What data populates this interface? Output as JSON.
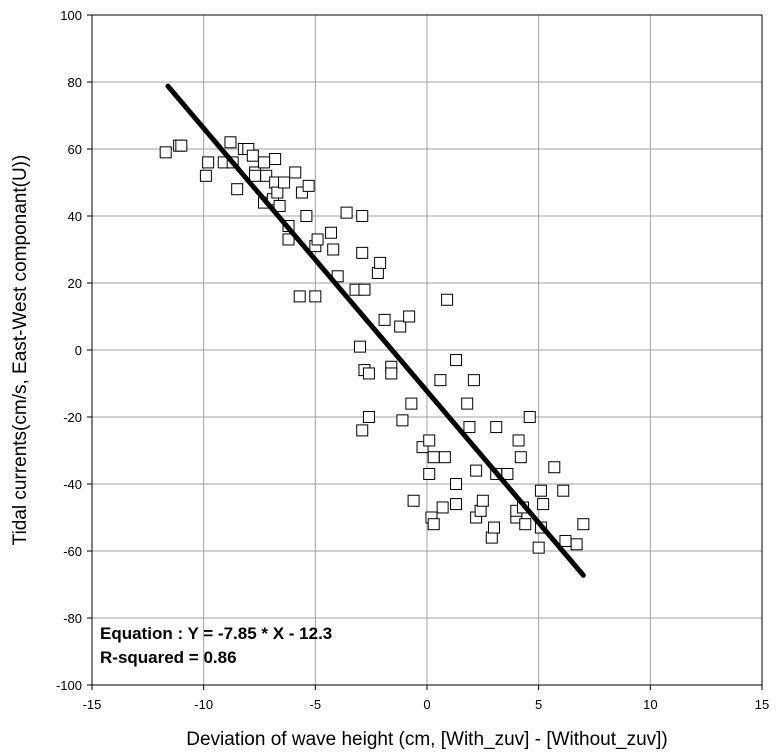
{
  "chart_data": {
    "type": "scatter",
    "xlabel": "Deviation of wave height (cm, [With_zuv] - [Without_zuv])",
    "ylabel": "Tidal currents(cm/s, East-West componant(U))",
    "xlim": [
      -15,
      15
    ],
    "ylim": [
      -100,
      100
    ],
    "xticks": [
      -15,
      -10,
      -5,
      0,
      5,
      10,
      15
    ],
    "yticks": [
      -100,
      -80,
      -60,
      -40,
      -20,
      0,
      20,
      40,
      60,
      80,
      100
    ],
    "xtick_labels": [
      "-15",
      "-10",
      "-5",
      "0",
      "5",
      "10",
      "15"
    ],
    "ytick_labels": [
      "-100",
      "-80",
      "-60",
      "-40",
      "-20",
      "0",
      "20",
      "40",
      "60",
      "80",
      "100"
    ],
    "grid": true,
    "marker": "open-square",
    "fit_line": {
      "slope": -7.85,
      "intercept": -12.3,
      "x_range": [
        -11.6,
        7.0
      ]
    },
    "annotations": [
      "Equation : Y = -7.85 * X - 12.3",
      "R-squared = 0.86"
    ],
    "points": [
      [
        -11.7,
        59
      ],
      [
        -11.1,
        61
      ],
      [
        -11.0,
        61
      ],
      [
        -9.9,
        52
      ],
      [
        -9.8,
        56
      ],
      [
        -9.1,
        56
      ],
      [
        -8.8,
        62
      ],
      [
        -8.7,
        56
      ],
      [
        -8.5,
        48
      ],
      [
        -8.2,
        60
      ],
      [
        -8.0,
        60
      ],
      [
        -7.8,
        58
      ],
      [
        -7.7,
        53
      ],
      [
        -7.7,
        52
      ],
      [
        -7.3,
        44
      ],
      [
        -7.3,
        56
      ],
      [
        -7.2,
        52
      ],
      [
        -6.9,
        45
      ],
      [
        -6.8,
        57
      ],
      [
        -6.8,
        50
      ],
      [
        -6.7,
        47
      ],
      [
        -6.6,
        43
      ],
      [
        -6.4,
        50
      ],
      [
        -6.2,
        37
      ],
      [
        -6.2,
        33
      ],
      [
        -5.9,
        53
      ],
      [
        -5.7,
        16
      ],
      [
        -5.6,
        47
      ],
      [
        -5.4,
        40
      ],
      [
        -5.3,
        49
      ],
      [
        -5.0,
        31
      ],
      [
        -5.0,
        16
      ],
      [
        -4.9,
        33
      ],
      [
        -4.3,
        35
      ],
      [
        -4.2,
        30
      ],
      [
        -4.0,
        22
      ],
      [
        -3.6,
        41
      ],
      [
        -3.2,
        18
      ],
      [
        -3.0,
        1
      ],
      [
        -2.9,
        40
      ],
      [
        -2.9,
        29
      ],
      [
        -2.9,
        -24
      ],
      [
        -2.8,
        18
      ],
      [
        -2.8,
        -6
      ],
      [
        -2.6,
        -7
      ],
      [
        -2.6,
        -20
      ],
      [
        -2.2,
        23
      ],
      [
        -2.1,
        26
      ],
      [
        -1.9,
        9
      ],
      [
        -1.6,
        -5
      ],
      [
        -1.6,
        -7
      ],
      [
        -1.2,
        7
      ],
      [
        -1.1,
        -21
      ],
      [
        -0.8,
        10
      ],
      [
        -0.7,
        -16
      ],
      [
        -0.6,
        -45
      ],
      [
        -0.2,
        -29
      ],
      [
        0.1,
        -27
      ],
      [
        0.1,
        -37
      ],
      [
        0.2,
        -50
      ],
      [
        0.3,
        -52
      ],
      [
        0.3,
        -32
      ],
      [
        0.6,
        -9
      ],
      [
        0.7,
        -47
      ],
      [
        0.8,
        -32
      ],
      [
        0.9,
        15
      ],
      [
        1.3,
        -3
      ],
      [
        1.3,
        -40
      ],
      [
        1.3,
        -46
      ],
      [
        1.8,
        -16
      ],
      [
        1.9,
        -23
      ],
      [
        2.1,
        -9
      ],
      [
        2.2,
        -36
      ],
      [
        2.2,
        -50
      ],
      [
        2.4,
        -48
      ],
      [
        2.5,
        -45
      ],
      [
        2.9,
        -56
      ],
      [
        3.0,
        -53
      ],
      [
        3.1,
        -23
      ],
      [
        3.1,
        -37
      ],
      [
        3.6,
        -37
      ],
      [
        4.0,
        -50
      ],
      [
        4.0,
        -48
      ],
      [
        4.1,
        -27
      ],
      [
        4.2,
        -32
      ],
      [
        4.3,
        -47
      ],
      [
        4.4,
        -52
      ],
      [
        4.6,
        -20
      ],
      [
        5.0,
        -59
      ],
      [
        5.1,
        -53
      ],
      [
        5.1,
        -42
      ],
      [
        5.2,
        -46
      ],
      [
        5.7,
        -35
      ],
      [
        6.1,
        -42
      ],
      [
        6.2,
        -57
      ],
      [
        6.7,
        -58
      ],
      [
        7.0,
        -52
      ]
    ]
  }
}
